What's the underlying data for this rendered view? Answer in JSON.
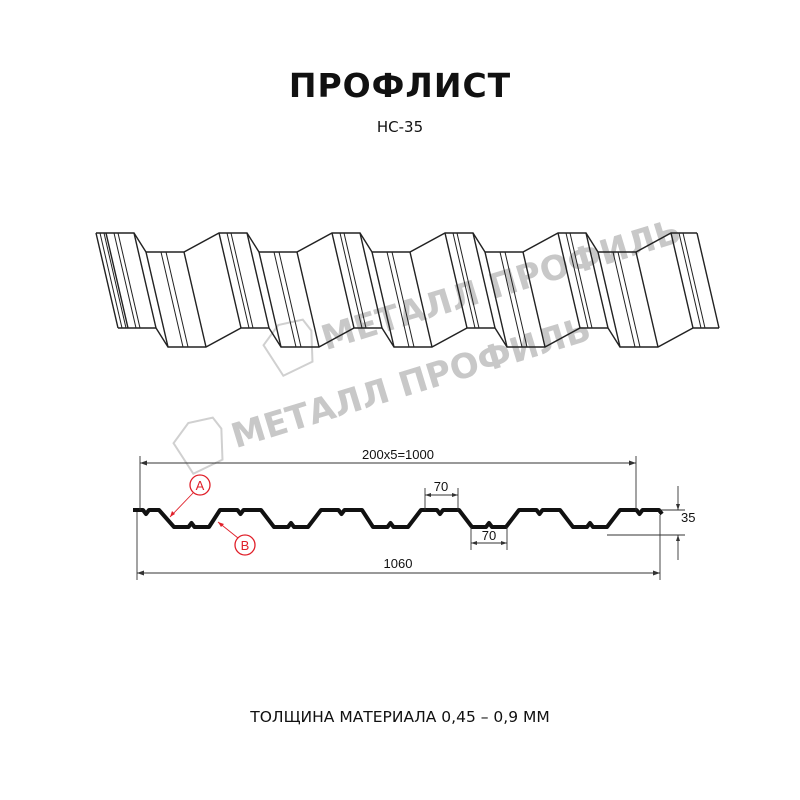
{
  "header": {
    "title": "ПРОФЛИСТ",
    "subtitle": "НС-35"
  },
  "watermark": {
    "text": "МЕТАЛЛ ПРОФИЛЬ"
  },
  "drawing": {
    "dimensions": {
      "covering_width": "200x5=1000",
      "full_width": "1060",
      "top_flat": "70",
      "bottom_flat": "70",
      "height": "35"
    },
    "markers": {
      "a": "A",
      "b": "B"
    },
    "marker_color": "#e0202a"
  },
  "footer": {
    "thickness": "ТОЛЩИНА МАТЕРИАЛА 0,45 – 0,9 ММ"
  }
}
